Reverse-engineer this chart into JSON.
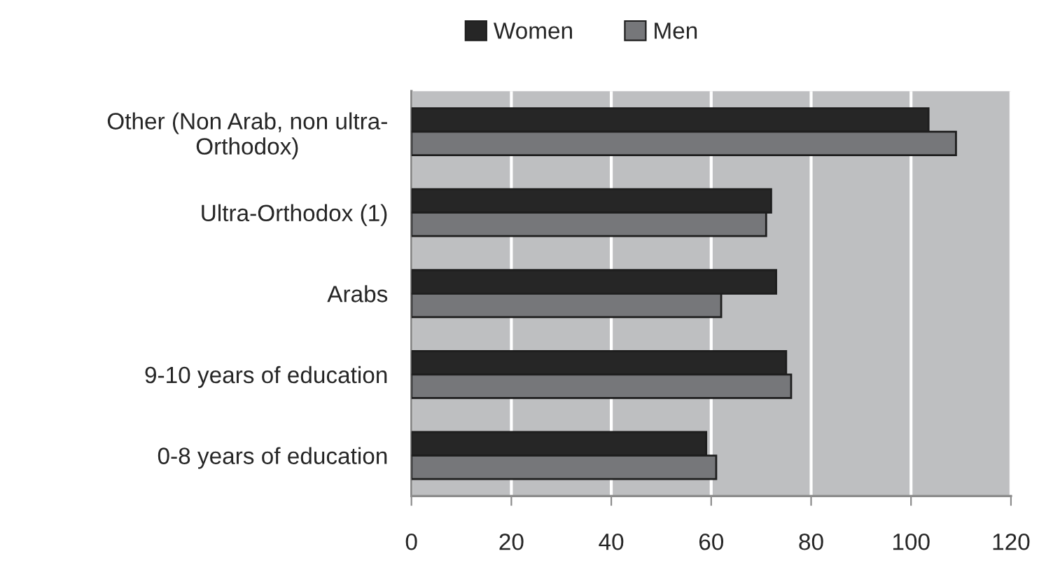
{
  "chart_data": {
    "type": "bar",
    "orientation": "horizontal",
    "categories": [
      "Other (Non Arab, non ultra-\nOrthodox)",
      "Ultra-Orthodox (1)",
      "Arabs",
      "9-10 years of education",
      "0-8 years of education"
    ],
    "series": [
      {
        "name": "Women",
        "color": "#262626",
        "values": [
          103.5,
          72,
          73,
          75,
          59
        ]
      },
      {
        "name": "Men",
        "color": "#76777a",
        "values": [
          109,
          71,
          62,
          76,
          61
        ]
      }
    ],
    "xlim": [
      0,
      120
    ],
    "xticks": [
      0,
      20,
      40,
      60,
      80,
      100,
      120
    ],
    "grid": "x",
    "legend": "top"
  }
}
